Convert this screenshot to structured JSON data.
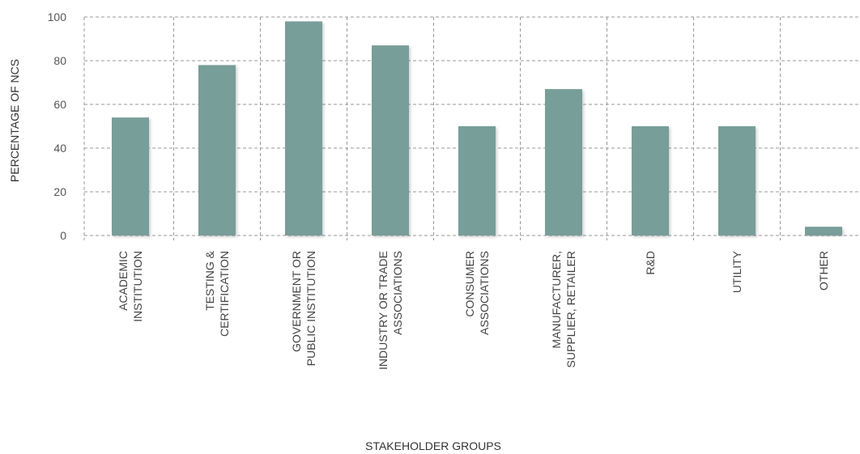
{
  "chart_data": {
    "type": "bar",
    "categories": [
      [
        "ACADEMIC",
        "INSTITUTION"
      ],
      [
        "TESTING &",
        "CERTIFICATION"
      ],
      [
        "GOVERNMENT OR",
        "PUBLIC INSTITUTION"
      ],
      [
        "INDUSTRY OR TRADE",
        "ASSOCIATIONS"
      ],
      [
        "CONSUMER",
        "ASSOCIATIONS"
      ],
      [
        "MANUFACTURER,",
        "SUPPLIER, RETAILER"
      ],
      [
        "R&D"
      ],
      [
        "UTILITY"
      ],
      [
        "OTHER"
      ]
    ],
    "values": [
      54,
      78,
      98,
      87,
      50,
      67,
      50,
      50,
      4
    ],
    "xlabel": "STAKEHOLDER GROUPS",
    "ylabel": "PERCENTAGE OF NCS",
    "ylim": [
      0,
      100
    ],
    "yticks": [
      "0",
      "20",
      "40",
      "60",
      "80",
      "100"
    ],
    "bar_color": "#789e99",
    "grid": true
  }
}
